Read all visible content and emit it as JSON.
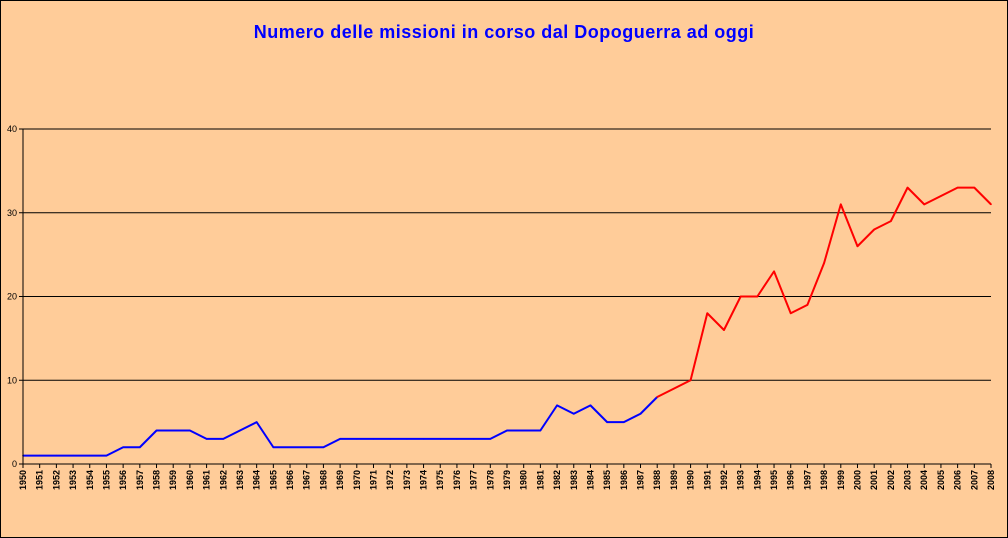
{
  "colors": {
    "background": "#ffcc99",
    "title": "#0000ff",
    "series_early": "#0000ff",
    "series_late": "#ff0000",
    "grid": "#000000"
  },
  "chart_data": {
    "type": "line",
    "title": "Numero delle missioni in corso dal Dopoguerra ad oggi",
    "xlabel": "",
    "ylabel": "",
    "ylim": [
      0,
      40
    ],
    "yticks": [
      0,
      10,
      20,
      30,
      40
    ],
    "grid": true,
    "legend": "none",
    "x": [
      1950,
      1951,
      1952,
      1953,
      1954,
      1955,
      1956,
      1957,
      1958,
      1959,
      1960,
      1961,
      1962,
      1963,
      1964,
      1965,
      1966,
      1967,
      1968,
      1969,
      1970,
      1971,
      1972,
      1973,
      1974,
      1975,
      1976,
      1977,
      1978,
      1979,
      1980,
      1981,
      1982,
      1983,
      1984,
      1985,
      1986,
      1987,
      1988,
      1989,
      1990,
      1991,
      1992,
      1993,
      1994,
      1995,
      1996,
      1997,
      1998,
      1999,
      2000,
      2001,
      2002,
      2003,
      2004,
      2005,
      2006,
      2007,
      2008
    ],
    "values": [
      1,
      1,
      1,
      1,
      1,
      1,
      2,
      2,
      4,
      4,
      4,
      3,
      3,
      4,
      5,
      2,
      2,
      2,
      2,
      3,
      3,
      3,
      3,
      3,
      3,
      3,
      3,
      3,
      3,
      4,
      4,
      4,
      7,
      6,
      7,
      5,
      5,
      6,
      8,
      9,
      10,
      18,
      16,
      20,
      20,
      23,
      18,
      19,
      24,
      31,
      26,
      28,
      29,
      33,
      31,
      32,
      33,
      33,
      31
    ],
    "color_change_year": 1988
  }
}
